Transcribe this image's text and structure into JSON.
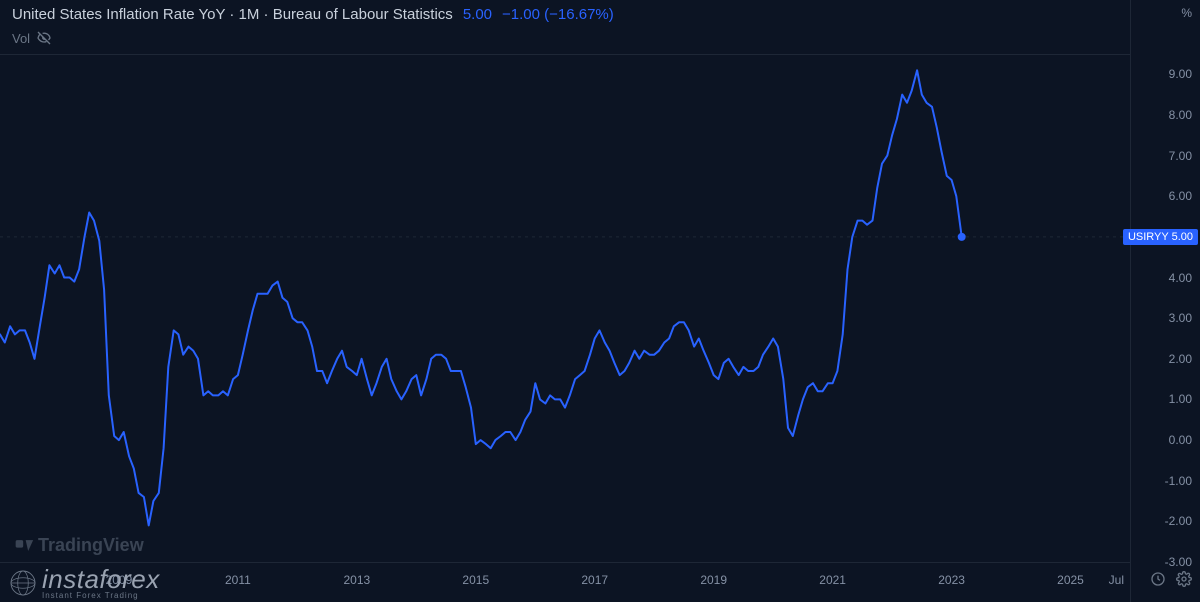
{
  "header": {
    "title": "United States Inflation Rate YoY · 1M · Bureau of Labour Statistics",
    "value": "5.00",
    "change": "−1.00 (−16.67%)"
  },
  "vol": {
    "label": "Vol"
  },
  "chart": {
    "type": "line",
    "line_color": "#2962ff",
    "line_width": 2,
    "background_color": "#0c1423",
    "grid_color": "#1e2736",
    "last_value": 5.0,
    "price_tag": "USIRYY   5.00",
    "ylim": [
      -3.0,
      9.5
    ],
    "yticks": [
      -3.0,
      -2.0,
      -1.0,
      0.0,
      1.0,
      2.0,
      3.0,
      4.0,
      5.0,
      6.0,
      7.0,
      8.0,
      9.0
    ],
    "y_unit": "%",
    "x_range": [
      2007.0,
      2026.0
    ],
    "xticks": [
      2009,
      2011,
      2013,
      2015,
      2017,
      2019,
      2021,
      2023,
      2025
    ],
    "x_right_label": "Jul",
    "series": [
      [
        2007.0,
        2.6
      ],
      [
        2007.08,
        2.4
      ],
      [
        2007.17,
        2.8
      ],
      [
        2007.25,
        2.6
      ],
      [
        2007.33,
        2.7
      ],
      [
        2007.42,
        2.7
      ],
      [
        2007.5,
        2.4
      ],
      [
        2007.58,
        2.0
      ],
      [
        2007.67,
        2.8
      ],
      [
        2007.75,
        3.5
      ],
      [
        2007.83,
        4.3
      ],
      [
        2007.92,
        4.1
      ],
      [
        2008.0,
        4.3
      ],
      [
        2008.08,
        4.0
      ],
      [
        2008.17,
        4.0
      ],
      [
        2008.25,
        3.9
      ],
      [
        2008.33,
        4.2
      ],
      [
        2008.42,
        5.0
      ],
      [
        2008.5,
        5.6
      ],
      [
        2008.58,
        5.4
      ],
      [
        2008.67,
        4.9
      ],
      [
        2008.75,
        3.7
      ],
      [
        2008.83,
        1.1
      ],
      [
        2008.92,
        0.1
      ],
      [
        2009.0,
        0.0
      ],
      [
        2009.08,
        0.2
      ],
      [
        2009.17,
        -0.4
      ],
      [
        2009.25,
        -0.7
      ],
      [
        2009.33,
        -1.3
      ],
      [
        2009.42,
        -1.4
      ],
      [
        2009.5,
        -2.1
      ],
      [
        2009.58,
        -1.5
      ],
      [
        2009.67,
        -1.3
      ],
      [
        2009.75,
        -0.2
      ],
      [
        2009.83,
        1.8
      ],
      [
        2009.92,
        2.7
      ],
      [
        2010.0,
        2.6
      ],
      [
        2010.08,
        2.1
      ],
      [
        2010.17,
        2.3
      ],
      [
        2010.25,
        2.2
      ],
      [
        2010.33,
        2.0
      ],
      [
        2010.42,
        1.1
      ],
      [
        2010.5,
        1.2
      ],
      [
        2010.58,
        1.1
      ],
      [
        2010.67,
        1.1
      ],
      [
        2010.75,
        1.2
      ],
      [
        2010.83,
        1.1
      ],
      [
        2010.92,
        1.5
      ],
      [
        2011.0,
        1.6
      ],
      [
        2011.08,
        2.1
      ],
      [
        2011.17,
        2.7
      ],
      [
        2011.25,
        3.2
      ],
      [
        2011.33,
        3.6
      ],
      [
        2011.42,
        3.6
      ],
      [
        2011.5,
        3.6
      ],
      [
        2011.58,
        3.8
      ],
      [
        2011.67,
        3.9
      ],
      [
        2011.75,
        3.5
      ],
      [
        2011.83,
        3.4
      ],
      [
        2011.92,
        3.0
      ],
      [
        2012.0,
        2.9
      ],
      [
        2012.08,
        2.9
      ],
      [
        2012.17,
        2.7
      ],
      [
        2012.25,
        2.3
      ],
      [
        2012.33,
        1.7
      ],
      [
        2012.42,
        1.7
      ],
      [
        2012.5,
        1.4
      ],
      [
        2012.58,
        1.7
      ],
      [
        2012.67,
        2.0
      ],
      [
        2012.75,
        2.2
      ],
      [
        2012.83,
        1.8
      ],
      [
        2012.92,
        1.7
      ],
      [
        2013.0,
        1.6
      ],
      [
        2013.08,
        2.0
      ],
      [
        2013.17,
        1.5
      ],
      [
        2013.25,
        1.1
      ],
      [
        2013.33,
        1.4
      ],
      [
        2013.42,
        1.8
      ],
      [
        2013.5,
        2.0
      ],
      [
        2013.58,
        1.5
      ],
      [
        2013.67,
        1.2
      ],
      [
        2013.75,
        1.0
      ],
      [
        2013.83,
        1.2
      ],
      [
        2013.92,
        1.5
      ],
      [
        2014.0,
        1.6
      ],
      [
        2014.08,
        1.1
      ],
      [
        2014.17,
        1.5
      ],
      [
        2014.25,
        2.0
      ],
      [
        2014.33,
        2.1
      ],
      [
        2014.42,
        2.1
      ],
      [
        2014.5,
        2.0
      ],
      [
        2014.58,
        1.7
      ],
      [
        2014.67,
        1.7
      ],
      [
        2014.75,
        1.7
      ],
      [
        2014.83,
        1.3
      ],
      [
        2014.92,
        0.8
      ],
      [
        2015.0,
        -0.1
      ],
      [
        2015.08,
        0.0
      ],
      [
        2015.17,
        -0.1
      ],
      [
        2015.25,
        -0.2
      ],
      [
        2015.33,
        0.0
      ],
      [
        2015.42,
        0.1
      ],
      [
        2015.5,
        0.2
      ],
      [
        2015.58,
        0.2
      ],
      [
        2015.67,
        0.0
      ],
      [
        2015.75,
        0.2
      ],
      [
        2015.83,
        0.5
      ],
      [
        2015.92,
        0.7
      ],
      [
        2016.0,
        1.4
      ],
      [
        2016.08,
        1.0
      ],
      [
        2016.17,
        0.9
      ],
      [
        2016.25,
        1.1
      ],
      [
        2016.33,
        1.0
      ],
      [
        2016.42,
        1.0
      ],
      [
        2016.5,
        0.8
      ],
      [
        2016.58,
        1.1
      ],
      [
        2016.67,
        1.5
      ],
      [
        2016.75,
        1.6
      ],
      [
        2016.83,
        1.7
      ],
      [
        2016.92,
        2.1
      ],
      [
        2017.0,
        2.5
      ],
      [
        2017.08,
        2.7
      ],
      [
        2017.17,
        2.4
      ],
      [
        2017.25,
        2.2
      ],
      [
        2017.33,
        1.9
      ],
      [
        2017.42,
        1.6
      ],
      [
        2017.5,
        1.7
      ],
      [
        2017.58,
        1.9
      ],
      [
        2017.67,
        2.2
      ],
      [
        2017.75,
        2.0
      ],
      [
        2017.83,
        2.2
      ],
      [
        2017.92,
        2.1
      ],
      [
        2018.0,
        2.1
      ],
      [
        2018.08,
        2.2
      ],
      [
        2018.17,
        2.4
      ],
      [
        2018.25,
        2.5
      ],
      [
        2018.33,
        2.8
      ],
      [
        2018.42,
        2.9
      ],
      [
        2018.5,
        2.9
      ],
      [
        2018.58,
        2.7
      ],
      [
        2018.67,
        2.3
      ],
      [
        2018.75,
        2.5
      ],
      [
        2018.83,
        2.2
      ],
      [
        2018.92,
        1.9
      ],
      [
        2019.0,
        1.6
      ],
      [
        2019.08,
        1.5
      ],
      [
        2019.17,
        1.9
      ],
      [
        2019.25,
        2.0
      ],
      [
        2019.33,
        1.8
      ],
      [
        2019.42,
        1.6
      ],
      [
        2019.5,
        1.8
      ],
      [
        2019.58,
        1.7
      ],
      [
        2019.67,
        1.7
      ],
      [
        2019.75,
        1.8
      ],
      [
        2019.83,
        2.1
      ],
      [
        2019.92,
        2.3
      ],
      [
        2020.0,
        2.5
      ],
      [
        2020.08,
        2.3
      ],
      [
        2020.17,
        1.5
      ],
      [
        2020.25,
        0.3
      ],
      [
        2020.33,
        0.1
      ],
      [
        2020.42,
        0.6
      ],
      [
        2020.5,
        1.0
      ],
      [
        2020.58,
        1.3
      ],
      [
        2020.67,
        1.4
      ],
      [
        2020.75,
        1.2
      ],
      [
        2020.83,
        1.2
      ],
      [
        2020.92,
        1.4
      ],
      [
        2021.0,
        1.4
      ],
      [
        2021.08,
        1.7
      ],
      [
        2021.17,
        2.6
      ],
      [
        2021.25,
        4.2
      ],
      [
        2021.33,
        5.0
      ],
      [
        2021.42,
        5.4
      ],
      [
        2021.5,
        5.4
      ],
      [
        2021.58,
        5.3
      ],
      [
        2021.67,
        5.4
      ],
      [
        2021.75,
        6.2
      ],
      [
        2021.83,
        6.8
      ],
      [
        2021.92,
        7.0
      ],
      [
        2022.0,
        7.5
      ],
      [
        2022.08,
        7.9
      ],
      [
        2022.17,
        8.5
      ],
      [
        2022.25,
        8.3
      ],
      [
        2022.33,
        8.6
      ],
      [
        2022.42,
        9.1
      ],
      [
        2022.5,
        8.5
      ],
      [
        2022.58,
        8.3
      ],
      [
        2022.67,
        8.2
      ],
      [
        2022.75,
        7.7
      ],
      [
        2022.83,
        7.1
      ],
      [
        2022.92,
        6.5
      ],
      [
        2023.0,
        6.4
      ],
      [
        2023.08,
        6.0
      ],
      [
        2023.17,
        5.0
      ]
    ]
  },
  "watermarks": {
    "tradingview": "TradingView",
    "instaforex_main": "instaforex",
    "instaforex_sub": "Instant Forex Trading"
  },
  "y_format_decimals": 2
}
